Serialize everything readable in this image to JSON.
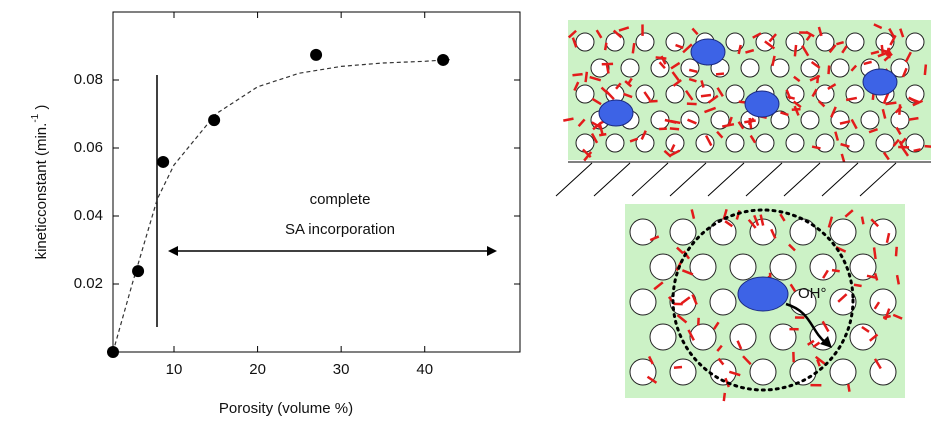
{
  "chart_data": {
    "type": "scatter",
    "xlabel": "Porosity (volume %)",
    "ylabel": "kineticconstant (min.",
    "ylabel_superscript": "-1",
    "ylabel_end": " )",
    "annotations": [
      "complete",
      "SA incorporation"
    ],
    "x": [
      2.7,
      5.7,
      8.7,
      14.8,
      27,
      42.2
    ],
    "values": [
      0,
      0.0238,
      0.0559,
      0.0682,
      0.0874,
      0.0859
    ],
    "color": "#000000",
    "fit": {
      "x": [
        2.7,
        5,
        8,
        10,
        15,
        20,
        25,
        30,
        35,
        40,
        43
      ],
      "values": [
        0,
        0.02,
        0.045,
        0.055,
        0.07,
        0.078,
        0.082,
        0.084,
        0.085,
        0.0855,
        0.086
      ],
      "color": "#333333"
    },
    "xlim": [
      2.7,
      51.4
    ],
    "ylim": [
      0,
      0.1
    ],
    "xticks": [
      10,
      20,
      30,
      40
    ],
    "yticks": [
      0.02,
      0.04,
      0.06,
      0.08
    ]
  },
  "diagram": {
    "label": "OH°"
  }
}
